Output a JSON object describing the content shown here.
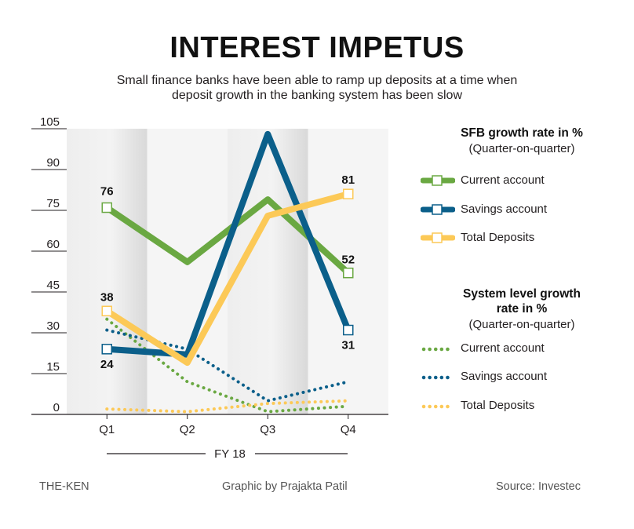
{
  "title": "INTEREST IMPETUS",
  "subtitle_line1": "Small finance banks have been able to ramp up deposits at a time when",
  "subtitle_line2": "deposit growth in the banking system has been slow",
  "legend": {
    "sfb_heading": "SFB growth rate in %",
    "sfb_sub": "(Quarter-on-quarter)",
    "sys_heading_line1": "System level growth",
    "sys_heading_line2": "rate in %",
    "sys_sub": "(Quarter-on-quarter)",
    "items": {
      "sfb_current": "Current account",
      "sfb_savings": "Savings account",
      "sfb_total": "Total Deposits",
      "sys_current": "Current account",
      "sys_savings": "Savings account",
      "sys_total": "Total Deposits"
    }
  },
  "footer": {
    "left": "THE-KEN",
    "center": "Graphic by Prajakta Patil",
    "right": "Source: Investec"
  },
  "colors": {
    "current": "#6aa842",
    "savings": "#0b5f8a",
    "total": "#fcc957",
    "axis": "#231f20"
  },
  "chart_data": {
    "type": "line",
    "categories": [
      "Q1",
      "Q2",
      "Q3",
      "Q4"
    ],
    "x_group_label": "FY 18",
    "ylim": [
      0,
      105
    ],
    "yticks": [
      0,
      15,
      30,
      45,
      60,
      75,
      90,
      105
    ],
    "grid": false,
    "legend_position": "right",
    "series": [
      {
        "key": "sfb_current",
        "name": "Current account",
        "group": "SFB growth rate in %",
        "style": "solid",
        "color": "#6aa842",
        "values": [
          76,
          56,
          79,
          52
        ],
        "labels": [
          "76",
          "",
          "",
          "52"
        ],
        "markers": [
          true,
          false,
          false,
          true
        ]
      },
      {
        "key": "sfb_savings",
        "name": "Savings account",
        "group": "SFB growth rate in %",
        "style": "solid",
        "color": "#0b5f8a",
        "values": [
          24,
          22,
          103,
          31
        ],
        "labels": [
          "24",
          "",
          "",
          "31"
        ],
        "markers": [
          true,
          false,
          false,
          true
        ]
      },
      {
        "key": "sfb_total",
        "name": "Total Deposits",
        "group": "SFB growth rate in %",
        "style": "solid",
        "color": "#fcc957",
        "values": [
          38,
          19,
          73,
          81
        ],
        "labels": [
          "38",
          "",
          "",
          "81"
        ],
        "markers": [
          true,
          false,
          false,
          true
        ]
      },
      {
        "key": "sys_current",
        "name": "Current account",
        "group": "System level growth rate in %",
        "style": "dotted",
        "color": "#6aa842",
        "values": [
          35,
          12,
          1,
          3
        ]
      },
      {
        "key": "sys_savings",
        "name": "Savings account",
        "group": "System level growth rate in %",
        "style": "dotted",
        "color": "#0b5f8a",
        "values": [
          31,
          24,
          5,
          12
        ]
      },
      {
        "key": "sys_total",
        "name": "Total Deposits",
        "group": "System level growth rate in %",
        "style": "dotted",
        "color": "#fcc957",
        "values": [
          2,
          1,
          4,
          5
        ]
      }
    ]
  }
}
